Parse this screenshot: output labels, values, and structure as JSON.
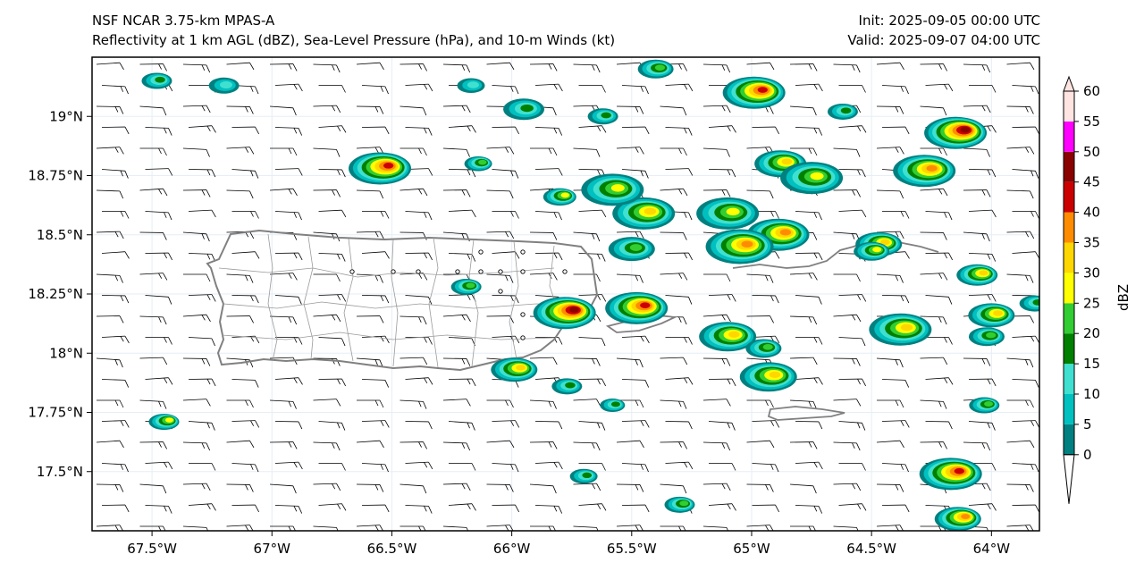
{
  "header": {
    "left_line1": "NSF NCAR 3.75-km MPAS-A",
    "left_line2": "Reflectivity at 1 km AGL (dBZ), Sea-Level Pressure (hPa), and 10-m Winds (kt)",
    "right_line1": "Init: 2025-09-05 00:00 UTC",
    "right_line2": "Valid: 2025-09-07 04:00 UTC"
  },
  "map": {
    "lon_range": [
      -67.75,
      -63.8
    ],
    "lat_range": [
      17.25,
      19.25
    ],
    "x_ticks": [
      {
        "lon": -67.5,
        "label": "67.5°W"
      },
      {
        "lon": -67.0,
        "label": "67°W"
      },
      {
        "lon": -66.5,
        "label": "66.5°W"
      },
      {
        "lon": -66.0,
        "label": "66°W"
      },
      {
        "lon": -65.5,
        "label": "65.5°W"
      },
      {
        "lon": -65.0,
        "label": "65°W"
      },
      {
        "lon": -64.5,
        "label": "64.5°W"
      },
      {
        "lon": -64.0,
        "label": "64°W"
      }
    ],
    "y_ticks": [
      {
        "lat": 19.0,
        "label": "19°N"
      },
      {
        "lat": 18.75,
        "label": "18.75°N"
      },
      {
        "lat": 18.5,
        "label": "18.5°N"
      },
      {
        "lat": 18.25,
        "label": "18.25°N"
      },
      {
        "lat": 18.0,
        "label": "18°N"
      },
      {
        "lat": 17.75,
        "label": "17.75°N"
      },
      {
        "lat": 17.5,
        "label": "17.5°N"
      }
    ],
    "wind_barbs": "easterly ~10-15 kt across domain",
    "storm_cells": [
      {
        "lon": -66.55,
        "lat": 18.78,
        "max_dbz": 40
      },
      {
        "lon": -65.78,
        "lat": 18.17,
        "max_dbz": 45
      },
      {
        "lon": -65.48,
        "lat": 18.19,
        "max_dbz": 40
      },
      {
        "lon": -64.99,
        "lat": 19.1,
        "max_dbz": 40
      },
      {
        "lon": -64.15,
        "lat": 18.93,
        "max_dbz": 45
      },
      {
        "lon": -64.28,
        "lat": 18.77,
        "max_dbz": 35
      },
      {
        "lon": -64.17,
        "lat": 17.49,
        "max_dbz": 40
      },
      {
        "lon": -64.38,
        "lat": 18.1,
        "max_dbz": 30
      },
      {
        "lon": -65.45,
        "lat": 18.59,
        "max_dbz": 30
      },
      {
        "lon": -64.89,
        "lat": 18.5,
        "max_dbz": 35
      }
    ]
  },
  "colorbar": {
    "label": "dBZ",
    "ticks": [
      "0",
      "5",
      "10",
      "15",
      "20",
      "25",
      "30",
      "35",
      "40",
      "45",
      "50",
      "55",
      "60"
    ],
    "colors": [
      "#008080",
      "#00c0c0",
      "#40e0d0",
      "#008000",
      "#32cd32",
      "#ffff00",
      "#ffd700",
      "#ff8c00",
      "#cc0000",
      "#8b0000",
      "#ff00ff",
      "#ffe4e1"
    ]
  }
}
